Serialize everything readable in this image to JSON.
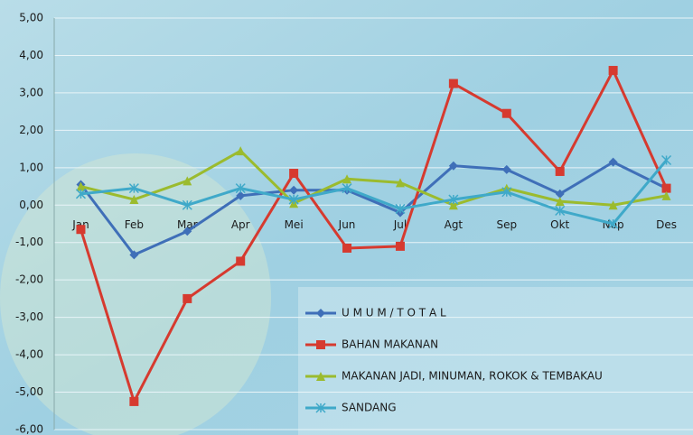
{
  "chart_data": {
    "type": "line",
    "categories": [
      "Jan",
      "Feb",
      "Mar",
      "Apr",
      "Mei",
      "Jun",
      "Jul",
      "Agt",
      "Sep",
      "Okt",
      "Nop",
      "Des"
    ],
    "series": [
      {
        "name": "U M U M / T O T A L",
        "color": "#3f6fb8",
        "marker": "diamond",
        "values": [
          0.55,
          -1.33,
          -0.7,
          0.25,
          0.4,
          0.4,
          -0.2,
          1.05,
          0.95,
          0.3,
          1.15,
          0.45
        ]
      },
      {
        "name": "BAHAN MAKANAN",
        "color": "#d63a2f",
        "marker": "square",
        "values": [
          -0.65,
          -5.25,
          -2.5,
          -1.5,
          0.85,
          -1.15,
          -1.1,
          3.25,
          2.45,
          0.9,
          3.6,
          0.45
        ]
      },
      {
        "name": "MAKANAN JADI, MINUMAN, ROKOK & TEMBAKAU",
        "color": "#9bbb2e",
        "marker": "triangle",
        "values": [
          0.5,
          0.15,
          0.65,
          1.45,
          0.05,
          0.7,
          0.6,
          0.0,
          0.45,
          0.1,
          0.0,
          0.25
        ]
      },
      {
        "name": "SANDANG",
        "color": "#3fa9c9",
        "marker": "star",
        "values": [
          0.3,
          0.45,
          0.0,
          0.45,
          0.15,
          0.45,
          -0.1,
          0.15,
          0.35,
          -0.15,
          -0.5,
          1.2
        ]
      }
    ],
    "ylim": [
      -6,
      5
    ],
    "yticks": [
      {
        "value": -6,
        "label": "-6,00"
      },
      {
        "value": -5,
        "label": "-5,00"
      },
      {
        "value": -4,
        "label": "-4,00"
      },
      {
        "value": -3,
        "label": "-3,00"
      },
      {
        "value": -2,
        "label": "-2,00"
      },
      {
        "value": -1,
        "label": "-1,00"
      },
      {
        "value": 0,
        "label": "0,00"
      },
      {
        "value": 1,
        "label": "1,00"
      },
      {
        "value": 2,
        "label": "2,00"
      },
      {
        "value": 3,
        "label": "3,00"
      },
      {
        "value": 4,
        "label": "4,00"
      },
      {
        "value": 5,
        "label": "5,00"
      }
    ],
    "grid": true
  }
}
